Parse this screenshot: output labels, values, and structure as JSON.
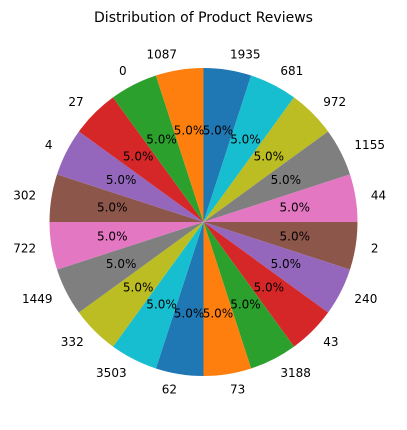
{
  "chart_data": {
    "type": "pie",
    "title": "Distribution of Product Reviews",
    "labels": [
      "1935",
      "681",
      "972",
      "1155",
      "44",
      "2",
      "240",
      "43",
      "3188",
      "73",
      "62",
      "3503",
      "332",
      "1449",
      "722",
      "302",
      "4",
      "27",
      "0",
      "1087"
    ],
    "values": [
      5,
      5,
      5,
      5,
      5,
      5,
      5,
      5,
      5,
      5,
      5,
      5,
      5,
      5,
      5,
      5,
      5,
      5,
      5,
      5
    ],
    "percent_labels": [
      "5.0%",
      "5.0%",
      "5.0%",
      "5.0%",
      "5.0%",
      "5.0%",
      "5.0%",
      "5.0%",
      "5.0%",
      "5.0%",
      "5.0%",
      "5.0%",
      "5.0%",
      "5.0%",
      "5.0%",
      "5.0%",
      "5.0%",
      "5.0%",
      "5.0%",
      "5.0%"
    ],
    "colors": [
      "#1f77b4",
      "#17becf",
      "#bcbd22",
      "#7f7f7f",
      "#e377c2",
      "#8c564b",
      "#9467bd",
      "#d62728",
      "#2ca02c",
      "#ff7f0e",
      "#1f77b4",
      "#17becf",
      "#bcbd22",
      "#7f7f7f",
      "#e377c2",
      "#8c564b",
      "#9467bd",
      "#d62728",
      "#2ca02c",
      "#ff7f0e"
    ],
    "start_angle": 90,
    "direction": "clockwise",
    "legend": "none"
  }
}
